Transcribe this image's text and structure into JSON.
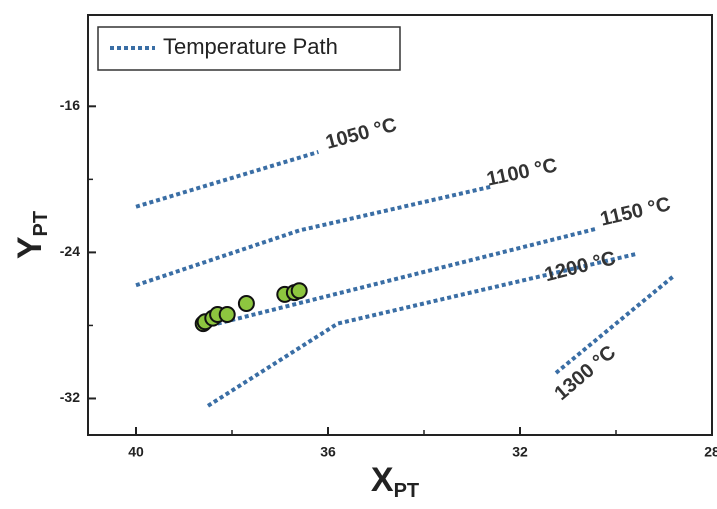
{
  "chart_data": {
    "type": "scatter",
    "xlabel": "X",
    "xlabel_sub": "PT",
    "ylabel": "Y",
    "ylabel_sub": "PT",
    "xlim": [
      41,
      28
    ],
    "ylim": [
      -34,
      -11
    ],
    "xticks": [
      40,
      36,
      32,
      28
    ],
    "yticks": [
      -16,
      -24,
      -32
    ],
    "minor_xticks": [
      38,
      34,
      30
    ],
    "minor_yticks": [
      -20,
      -28
    ],
    "legend": {
      "label": "Temperature Path",
      "position": "upper left"
    },
    "path_color": "#3a6ea5",
    "paths": [
      {
        "label": "1050 °C",
        "x": [
          40,
          36.2
        ],
        "y": [
          -21.5,
          -18.5
        ]
      },
      {
        "label": "1100 °C",
        "x": [
          40,
          36.6,
          32.6
        ],
        "y": [
          -25.8,
          -22.8,
          -20.4
        ]
      },
      {
        "label": "1150 °C",
        "x": [
          38.3,
          30.4
        ],
        "y": [
          -27.9,
          -22.7
        ]
      },
      {
        "label": "1200 °C",
        "x": [
          38.5,
          35.8,
          29.6
        ],
        "y": [
          -32.4,
          -27.9,
          -24.1
        ]
      },
      {
        "label": "1300 °C",
        "x": [
          31.25,
          28.8
        ],
        "y": [
          -30.6,
          -25.3
        ]
      }
    ],
    "series": [
      {
        "color": "#8dc63f",
        "x": [
          38.6,
          38.56,
          38.4,
          38.3,
          38.1,
          37.7,
          36.9,
          36.7,
          36.6
        ],
        "values": [
          -27.9,
          -27.8,
          -27.6,
          -27.4,
          -27.4,
          -26.8,
          -26.3,
          -26.2,
          -26.1
        ]
      }
    ]
  }
}
